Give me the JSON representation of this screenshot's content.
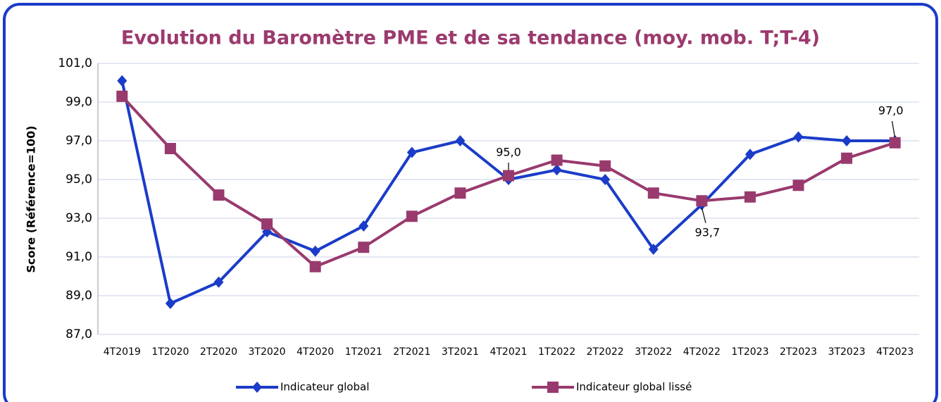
{
  "chart_data": {
    "type": "line",
    "title": "Evolution du Baromètre PME et de sa tendance (moy. mob. T;T-4)",
    "y_label": "Score (Référence=100)",
    "categories": [
      "4T2019",
      "1T2020",
      "2T2020",
      "3T2020",
      "4T2020",
      "1T2021",
      "2T2021",
      "3T2021",
      "4T2021",
      "1T2022",
      "2T2022",
      "3T2022",
      "4T2022",
      "1T2023",
      "2T2023",
      "3T2023",
      "4T2023"
    ],
    "series": [
      {
        "name": "Indicateur global",
        "color": "#1a3cc8",
        "marker": "diamond",
        "values": [
          100.1,
          88.6,
          89.7,
          92.3,
          91.3,
          92.6,
          96.4,
          97.0,
          95.0,
          95.5,
          95.0,
          91.4,
          93.7,
          96.3,
          97.2,
          97.0,
          97.0
        ],
        "value_labels": [
          null,
          null,
          null,
          null,
          null,
          null,
          null,
          null,
          "95,0",
          null,
          null,
          null,
          "93,7",
          null,
          null,
          null,
          "97,0"
        ]
      },
      {
        "name": "Indicateur global lissé",
        "color": "#993a6e",
        "marker": "square",
        "values": [
          99.3,
          96.6,
          94.2,
          92.7,
          90.5,
          91.5,
          93.1,
          94.3,
          95.2,
          96.0,
          95.7,
          94.3,
          93.9,
          94.1,
          94.7,
          96.1,
          96.9
        ]
      }
    ],
    "ylim": [
      87,
      101
    ],
    "yticks": [
      {
        "value": 87,
        "label": "87,0"
      },
      {
        "value": 89,
        "label": "89,0"
      },
      {
        "value": 91,
        "label": "91,0"
      },
      {
        "value": 93,
        "label": "93,0"
      },
      {
        "value": 95,
        "label": "95,0"
      },
      {
        "value": 97,
        "label": "97,0"
      },
      {
        "value": 99,
        "label": "99,0"
      },
      {
        "value": 101,
        "label": "101,0"
      }
    ],
    "grid": true,
    "legend": "bottom"
  }
}
